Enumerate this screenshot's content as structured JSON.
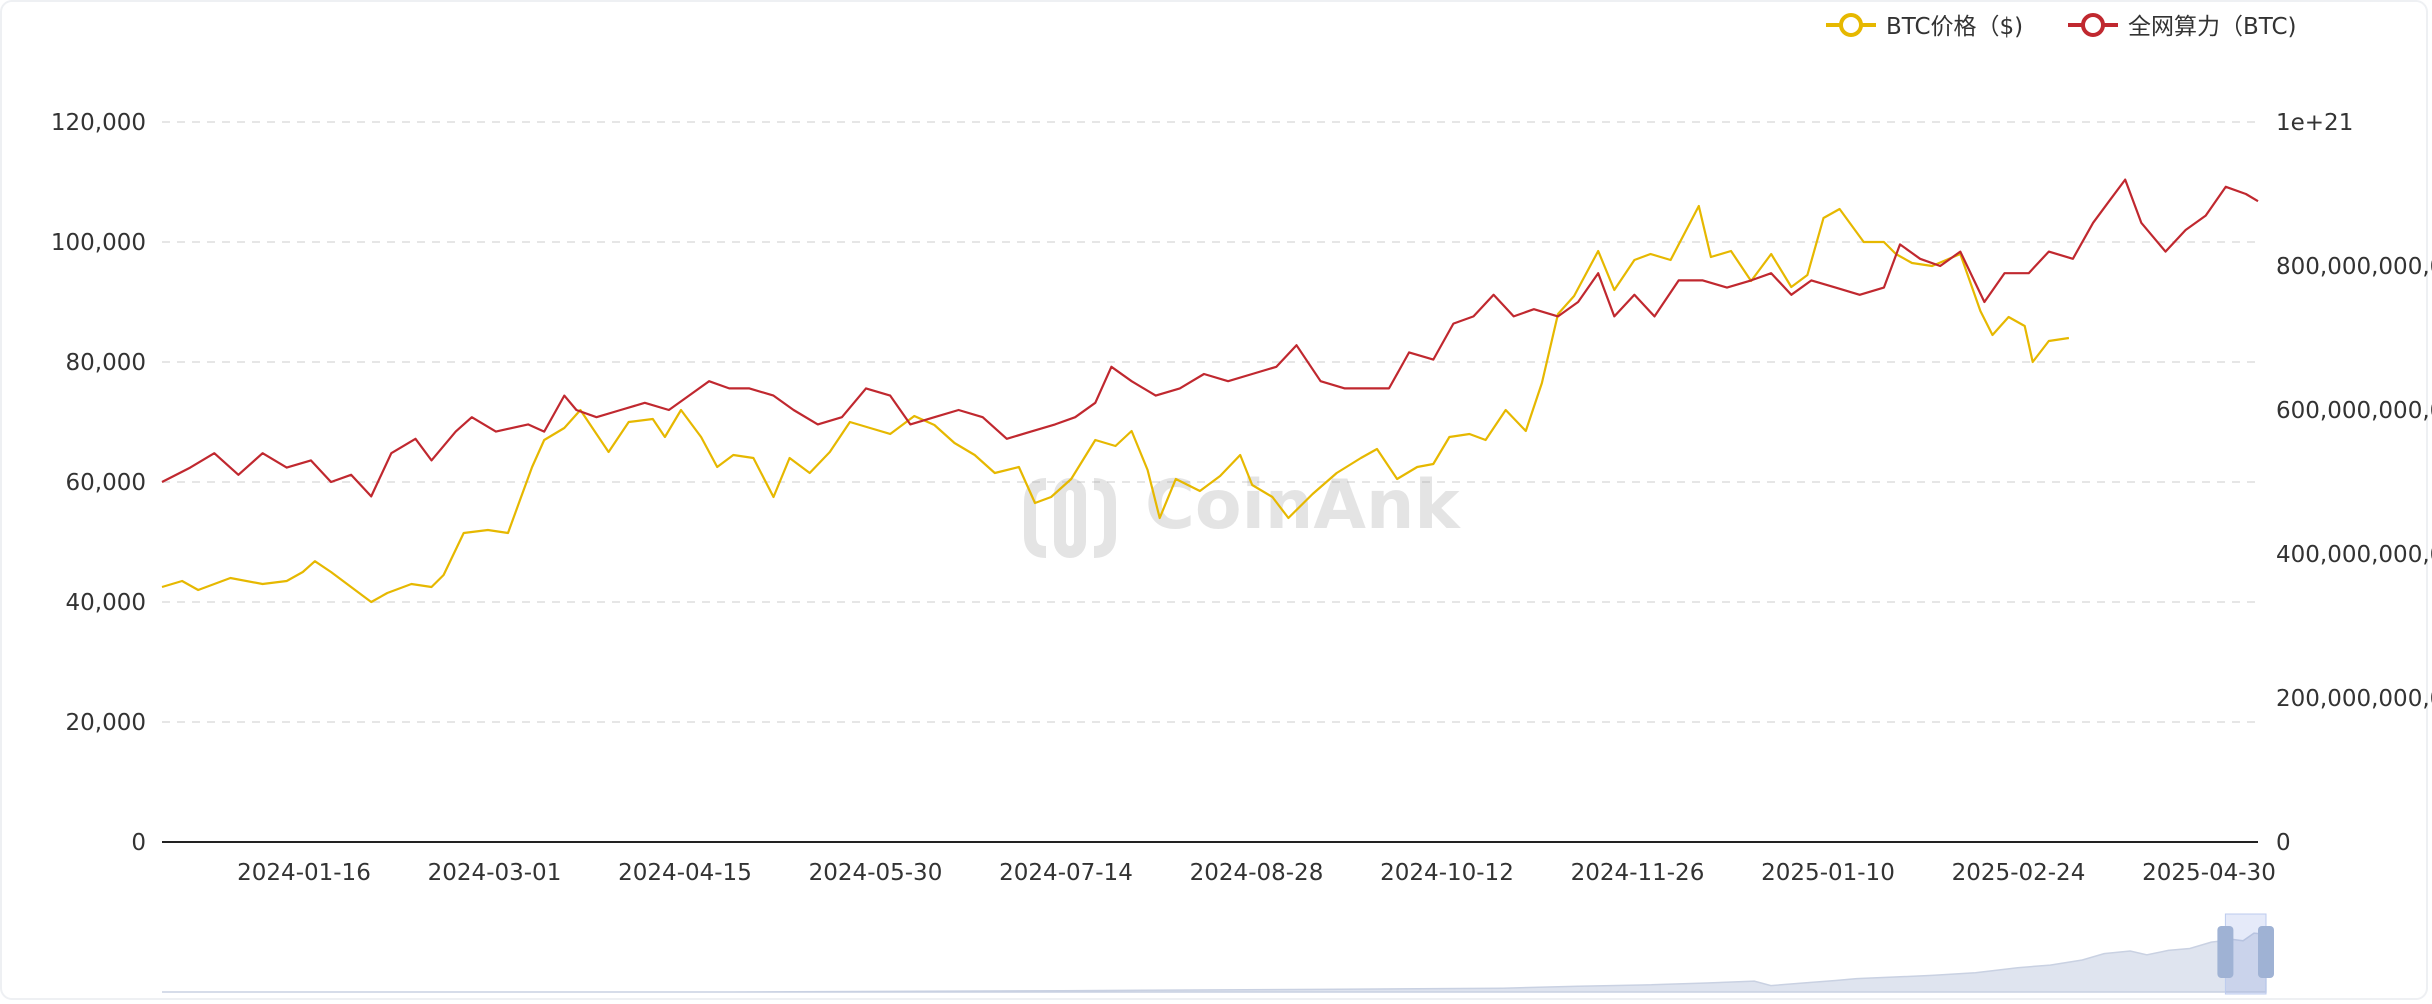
{
  "chart_data": {
    "type": "line",
    "watermark": "CoinAnk",
    "legend": {
      "position": "top-right",
      "items": [
        {
          "label": "BTC价格（$)",
          "color": "#e6b800"
        },
        {
          "label": "全网算力（BTC)",
          "color": "#c0282f"
        }
      ]
    },
    "x_tick_labels": [
      "2024-01-16",
      "2024-03-01",
      "2024-04-15",
      "2024-05-30",
      "2024-07-14",
      "2024-08-28",
      "2024-10-12",
      "2024-11-26",
      "2025-01-10",
      "2025-02-24",
      "2025-04-30"
    ],
    "x_range": [
      "2023-12-01",
      "2025-05-05"
    ],
    "y_left": {
      "range": [
        0,
        120000
      ],
      "tick_labels": [
        "0",
        "20,000",
        "40,000",
        "60,000",
        "80,000",
        "100,000",
        "120,000"
      ]
    },
    "y_right": {
      "range": [
        0,
        1e+21
      ],
      "tick_labels": [
        "0",
        "200,000,000,0",
        "400,000,000,0",
        "600,000,000,0",
        "800,000,000,0",
        "1e+21"
      ]
    },
    "grid": true,
    "series": [
      {
        "name": "BTC价格（$)",
        "axis": "left",
        "color": "#e6b800",
        "points": [
          [
            "2023-12-01",
            42500
          ],
          [
            "2023-12-06",
            43500
          ],
          [
            "2023-12-10",
            42000
          ],
          [
            "2023-12-18",
            44000
          ],
          [
            "2023-12-26",
            43000
          ],
          [
            "2024-01-01",
            43500
          ],
          [
            "2024-01-05",
            45000
          ],
          [
            "2024-01-08",
            46800
          ],
          [
            "2024-01-12",
            45000
          ],
          [
            "2024-01-17",
            42500
          ],
          [
            "2024-01-22",
            40000
          ],
          [
            "2024-01-26",
            41500
          ],
          [
            "2024-02-01",
            43000
          ],
          [
            "2024-02-06",
            42500
          ],
          [
            "2024-02-09",
            44500
          ],
          [
            "2024-02-14",
            51500
          ],
          [
            "2024-02-20",
            52000
          ],
          [
            "2024-02-25",
            51500
          ],
          [
            "2024-02-28",
            57000
          ],
          [
            "2024-03-02",
            62500
          ],
          [
            "2024-03-05",
            67000
          ],
          [
            "2024-03-10",
            69000
          ],
          [
            "2024-03-14",
            72000
          ],
          [
            "2024-03-18",
            68000
          ],
          [
            "2024-03-21",
            65000
          ],
          [
            "2024-03-26",
            70000
          ],
          [
            "2024-04-01",
            70500
          ],
          [
            "2024-04-04",
            67500
          ],
          [
            "2024-04-08",
            72000
          ],
          [
            "2024-04-13",
            67500
          ],
          [
            "2024-04-17",
            62500
          ],
          [
            "2024-04-21",
            64500
          ],
          [
            "2024-04-26",
            64000
          ],
          [
            "2024-05-01",
            57500
          ],
          [
            "2024-05-05",
            64000
          ],
          [
            "2024-05-10",
            61500
          ],
          [
            "2024-05-15",
            65000
          ],
          [
            "2024-05-20",
            70000
          ],
          [
            "2024-05-25",
            69000
          ],
          [
            "2024-05-30",
            68000
          ],
          [
            "2024-06-05",
            71000
          ],
          [
            "2024-06-10",
            69500
          ],
          [
            "2024-06-15",
            66500
          ],
          [
            "2024-06-20",
            64500
          ],
          [
            "2024-06-25",
            61500
          ],
          [
            "2024-07-01",
            62500
          ],
          [
            "2024-07-05",
            56500
          ],
          [
            "2024-07-09",
            57500
          ],
          [
            "2024-07-14",
            60500
          ],
          [
            "2024-07-20",
            67000
          ],
          [
            "2024-07-25",
            66000
          ],
          [
            "2024-07-29",
            68500
          ],
          [
            "2024-08-02",
            62000
          ],
          [
            "2024-08-05",
            54000
          ],
          [
            "2024-08-09",
            60500
          ],
          [
            "2024-08-15",
            58500
          ],
          [
            "2024-08-20",
            61000
          ],
          [
            "2024-08-25",
            64500
          ],
          [
            "2024-08-28",
            59500
          ],
          [
            "2024-09-02",
            57500
          ],
          [
            "2024-09-06",
            54000
          ],
          [
            "2024-09-12",
            58000
          ],
          [
            "2024-09-18",
            61500
          ],
          [
            "2024-09-24",
            64000
          ],
          [
            "2024-09-28",
            65500
          ],
          [
            "2024-10-03",
            60500
          ],
          [
            "2024-10-08",
            62500
          ],
          [
            "2024-10-12",
            63000
          ],
          [
            "2024-10-16",
            67500
          ],
          [
            "2024-10-21",
            68000
          ],
          [
            "2024-10-25",
            67000
          ],
          [
            "2024-10-30",
            72000
          ],
          [
            "2024-11-04",
            68500
          ],
          [
            "2024-11-08",
            76500
          ],
          [
            "2024-11-12",
            88000
          ],
          [
            "2024-11-16",
            91000
          ],
          [
            "2024-11-22",
            98500
          ],
          [
            "2024-11-26",
            92000
          ],
          [
            "2024-12-01",
            97000
          ],
          [
            "2024-12-05",
            98000
          ],
          [
            "2024-12-10",
            97000
          ],
          [
            "2024-12-17",
            106000
          ],
          [
            "2024-12-20",
            97500
          ],
          [
            "2024-12-25",
            98500
          ],
          [
            "2024-12-30",
            93500
          ],
          [
            "2025-01-04",
            98000
          ],
          [
            "2025-01-09",
            92500
          ],
          [
            "2025-01-13",
            94500
          ],
          [
            "2025-01-17",
            104000
          ],
          [
            "2025-01-21",
            105500
          ],
          [
            "2025-01-27",
            100000
          ],
          [
            "2025-02-01",
            100000
          ],
          [
            "2025-02-04",
            98000
          ],
          [
            "2025-02-08",
            96500
          ],
          [
            "2025-02-13",
            96000
          ],
          [
            "2025-02-20",
            98000
          ],
          [
            "2025-02-25",
            88500
          ],
          [
            "2025-02-28",
            84500
          ],
          [
            "2025-03-02",
            86000
          ],
          [
            "2025-03-04",
            87500
          ],
          [
            "2025-03-08",
            86000
          ],
          [
            "2025-03-10",
            80000
          ],
          [
            "2025-03-14",
            83500
          ],
          [
            "2025-03-19",
            84000
          ]
        ]
      },
      {
        "name": "全网算力（BTC)",
        "axis": "right",
        "color": "#c0282f",
        "points": [
          [
            "2023-12-01",
            5e+20
          ],
          [
            "2023-12-08",
            5.2e+20
          ],
          [
            "2023-12-14",
            5.4e+20
          ],
          [
            "2023-12-20",
            5.1e+20
          ],
          [
            "2023-12-26",
            5.4e+20
          ],
          [
            "2024-01-01",
            5.2e+20
          ],
          [
            "2024-01-07",
            5.3e+20
          ],
          [
            "2024-01-12",
            5e+20
          ],
          [
            "2024-01-17",
            5.1e+20
          ],
          [
            "2024-01-22",
            4.8e+20
          ],
          [
            "2024-01-27",
            5.4e+20
          ],
          [
            "2024-02-02",
            5.6e+20
          ],
          [
            "2024-02-06",
            5.3e+20
          ],
          [
            "2024-02-12",
            5.7e+20
          ],
          [
            "2024-02-16",
            5.9e+20
          ],
          [
            "2024-02-22",
            5.7e+20
          ],
          [
            "2024-03-01",
            5.8e+20
          ],
          [
            "2024-03-05",
            5.7e+20
          ],
          [
            "2024-03-10",
            6.2e+20
          ],
          [
            "2024-03-13",
            6e+20
          ],
          [
            "2024-03-18",
            5.9e+20
          ],
          [
            "2024-03-24",
            6e+20
          ],
          [
            "2024-03-30",
            6.1e+20
          ],
          [
            "2024-04-05",
            6e+20
          ],
          [
            "2024-04-10",
            6.2e+20
          ],
          [
            "2024-04-15",
            6.4e+20
          ],
          [
            "2024-04-20",
            6.3e+20
          ],
          [
            "2024-04-25",
            6.3e+20
          ],
          [
            "2024-05-01",
            6.2e+20
          ],
          [
            "2024-05-06",
            6e+20
          ],
          [
            "2024-05-12",
            5.8e+20
          ],
          [
            "2024-05-18",
            5.9e+20
          ],
          [
            "2024-05-24",
            6.3e+20
          ],
          [
            "2024-05-30",
            6.2e+20
          ],
          [
            "2024-06-04",
            5.8e+20
          ],
          [
            "2024-06-10",
            5.9e+20
          ],
          [
            "2024-06-16",
            6e+20
          ],
          [
            "2024-06-22",
            5.9e+20
          ],
          [
            "2024-06-28",
            5.6e+20
          ],
          [
            "2024-07-04",
            5.7e+20
          ],
          [
            "2024-07-10",
            5.8e+20
          ],
          [
            "2024-07-15",
            5.9e+20
          ],
          [
            "2024-07-20",
            6.1e+20
          ],
          [
            "2024-07-24",
            6.6e+20
          ],
          [
            "2024-07-29",
            6.4e+20
          ],
          [
            "2024-08-04",
            6.2e+20
          ],
          [
            "2024-08-10",
            6.3e+20
          ],
          [
            "2024-08-16",
            6.5e+20
          ],
          [
            "2024-08-22",
            6.4e+20
          ],
          [
            "2024-08-28",
            6.5e+20
          ],
          [
            "2024-09-03",
            6.6e+20
          ],
          [
            "2024-09-08",
            6.9e+20
          ],
          [
            "2024-09-14",
            6.4e+20
          ],
          [
            "2024-09-20",
            6.3e+20
          ],
          [
            "2024-09-26",
            6.3e+20
          ],
          [
            "2024-10-01",
            6.3e+20
          ],
          [
            "2024-10-06",
            6.8e+20
          ],
          [
            "2024-10-12",
            6.7e+20
          ],
          [
            "2024-10-17",
            7.2e+20
          ],
          [
            "2024-10-22",
            7.3e+20
          ],
          [
            "2024-10-27",
            7.6e+20
          ],
          [
            "2024-11-01",
            7.3e+20
          ],
          [
            "2024-11-06",
            7.4e+20
          ],
          [
            "2024-11-12",
            7.3e+20
          ],
          [
            "2024-11-17",
            7.5e+20
          ],
          [
            "2024-11-22",
            7.9e+20
          ],
          [
            "2024-11-26",
            7.3e+20
          ],
          [
            "2024-12-01",
            7.6e+20
          ],
          [
            "2024-12-06",
            7.3e+20
          ],
          [
            "2024-12-12",
            7.8e+20
          ],
          [
            "2024-12-18",
            7.8e+20
          ],
          [
            "2024-12-24",
            7.7e+20
          ],
          [
            "2024-12-30",
            7.8e+20
          ],
          [
            "2025-01-04",
            7.9e+20
          ],
          [
            "2025-01-09",
            7.6e+20
          ],
          [
            "2025-01-14",
            7.8e+20
          ],
          [
            "2025-01-20",
            7.7e+20
          ],
          [
            "2025-01-26",
            7.6e+20
          ],
          [
            "2025-02-01",
            7.7e+20
          ],
          [
            "2025-02-05",
            8.3e+20
          ],
          [
            "2025-02-10",
            8.1e+20
          ],
          [
            "2025-02-15",
            8e+20
          ],
          [
            "2025-02-20",
            8.2e+20
          ],
          [
            "2025-02-26",
            7.5e+20
          ],
          [
            "2025-03-03",
            7.9e+20
          ],
          [
            "2025-03-09",
            7.9e+20
          ],
          [
            "2025-03-14",
            8.2e+20
          ],
          [
            "2025-03-20",
            8.1e+20
          ],
          [
            "2025-03-25",
            8.6e+20
          ],
          [
            "2025-03-29",
            8.9e+20
          ],
          [
            "2025-04-02",
            9.2e+20
          ],
          [
            "2025-04-06",
            8.6e+20
          ],
          [
            "2025-04-12",
            8.2e+20
          ],
          [
            "2025-04-17",
            8.5e+20
          ],
          [
            "2025-04-22",
            8.7e+20
          ],
          [
            "2025-04-27",
            9.1e+20
          ],
          [
            "2025-05-02",
            9e+20
          ],
          [
            "2025-05-05",
            8.9e+20
          ]
        ]
      }
    ],
    "data_zoom": {
      "window": [
        "2025-01-10",
        "2025-05-05"
      ],
      "overview_range": [
        "2009-01-03",
        "2025-05-05"
      ],
      "overview_shape": [
        [
          "2009-01-03",
          0
        ],
        [
          "2013-06-01",
          0
        ],
        [
          "2016-01-01",
          0.02
        ],
        [
          "2018-01-01",
          0.04
        ],
        [
          "2019-06-01",
          0.06
        ],
        [
          "2020-01-01",
          0.09
        ],
        [
          "2020-07-01",
          0.11
        ],
        [
          "2021-01-01",
          0.14
        ],
        [
          "2021-05-15",
          0.17
        ],
        [
          "2021-07-01",
          0.1
        ],
        [
          "2021-10-01",
          0.14
        ],
        [
          "2022-01-01",
          0.18
        ],
        [
          "2022-03-01",
          0.21
        ],
        [
          "2022-06-01",
          0.23
        ],
        [
          "2022-10-01",
          0.26
        ],
        [
          "2023-02-01",
          0.3
        ],
        [
          "2023-06-01",
          0.38
        ],
        [
          "2023-09-01",
          0.42
        ],
        [
          "2023-12-01",
          0.5
        ],
        [
          "2024-02-01",
          0.6
        ],
        [
          "2024-04-15",
          0.64
        ],
        [
          "2024-06-01",
          0.58
        ],
        [
          "2024-08-01",
          0.65
        ],
        [
          "2024-10-01",
          0.68
        ],
        [
          "2024-12-01",
          0.78
        ],
        [
          "2025-02-01",
          0.82
        ],
        [
          "2025-03-01",
          0.8
        ],
        [
          "2025-04-01",
          0.92
        ],
        [
          "2025-05-05",
          0.9
        ]
      ]
    }
  }
}
